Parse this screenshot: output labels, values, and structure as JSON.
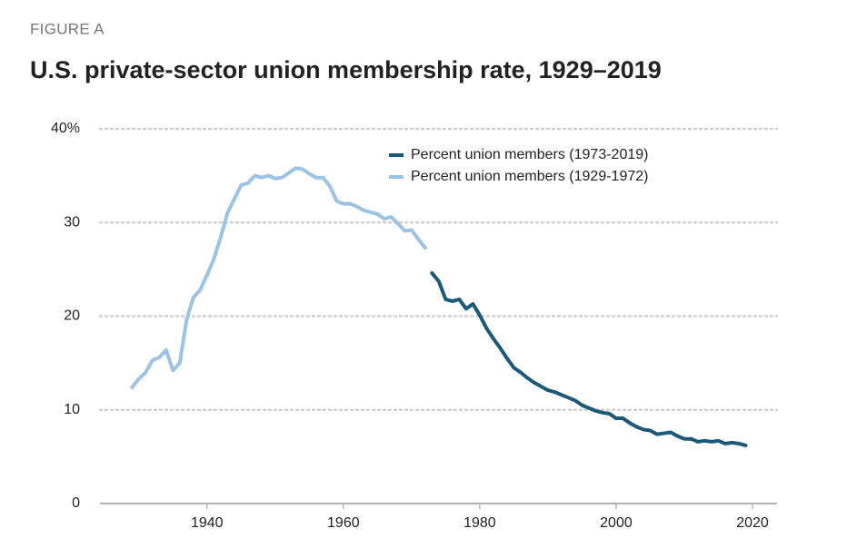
{
  "chart_data": {
    "type": "line",
    "subtitle": "FIGURE A",
    "title": "U.S. private-sector union membership rate, 1929–2019",
    "xlim": [
      1924.3,
      2023.6
    ],
    "ylim": [
      0,
      40
    ],
    "xticks": [
      1940,
      1960,
      1980,
      2000,
      2020
    ],
    "yticks": [
      0,
      10,
      20,
      30,
      {
        "value": 40,
        "label": "40%"
      }
    ],
    "grid": true,
    "series": [
      {
        "name": "Percent union members (1973-2019)",
        "color": "#1c5878",
        "x": [
          1973,
          1974,
          1975,
          1976,
          1977,
          1978,
          1979,
          1980,
          1981,
          1982,
          1983,
          1984,
          1985,
          1986,
          1987,
          1988,
          1989,
          1990,
          1991,
          1992,
          1993,
          1994,
          1995,
          1996,
          1997,
          1998,
          1999,
          2000,
          2001,
          2002,
          2003,
          2004,
          2005,
          2006,
          2007,
          2008,
          2009,
          2010,
          2011,
          2012,
          2013,
          2014,
          2015,
          2016,
          2017,
          2018,
          2019
        ],
        "values": [
          24.6,
          23.7,
          21.8,
          21.6,
          21.8,
          20.8,
          21.3,
          20.1,
          18.7,
          17.6,
          16.6,
          15.5,
          14.5,
          14.0,
          13.4,
          12.9,
          12.5,
          12.1,
          11.9,
          11.6,
          11.3,
          11.0,
          10.5,
          10.2,
          9.9,
          9.7,
          9.6,
          9.1,
          9.1,
          8.6,
          8.2,
          7.9,
          7.8,
          7.4,
          7.5,
          7.6,
          7.2,
          6.9,
          6.9,
          6.6,
          6.7,
          6.6,
          6.7,
          6.4,
          6.5,
          6.4,
          6.2
        ]
      },
      {
        "name": "Percent union members (1929-1972)",
        "color": "#9cc3e4",
        "x": [
          1929,
          1930,
          1931,
          1932,
          1933,
          1934,
          1935,
          1936,
          1937,
          1938,
          1939,
          1940,
          1941,
          1942,
          1943,
          1944,
          1945,
          1946,
          1947,
          1948,
          1949,
          1950,
          1951,
          1952,
          1953,
          1954,
          1955,
          1956,
          1957,
          1958,
          1959,
          1960,
          1961,
          1962,
          1963,
          1964,
          1965,
          1966,
          1967,
          1968,
          1969,
          1970,
          1971,
          1972
        ],
        "values": [
          12.4,
          13.3,
          14.0,
          15.3,
          15.6,
          16.4,
          14.2,
          15.0,
          19.6,
          22.0,
          22.8,
          24.4,
          26.1,
          28.4,
          31.0,
          32.5,
          34.0,
          34.2,
          35.0,
          34.8,
          35.0,
          34.7,
          34.8,
          35.3,
          35.8,
          35.7,
          35.2,
          34.8,
          34.8,
          33.9,
          32.3,
          32.0,
          32.0,
          31.7,
          31.3,
          31.1,
          30.9,
          30.4,
          30.6,
          29.9,
          29.1,
          29.2,
          28.2,
          27.3
        ]
      }
    ]
  }
}
